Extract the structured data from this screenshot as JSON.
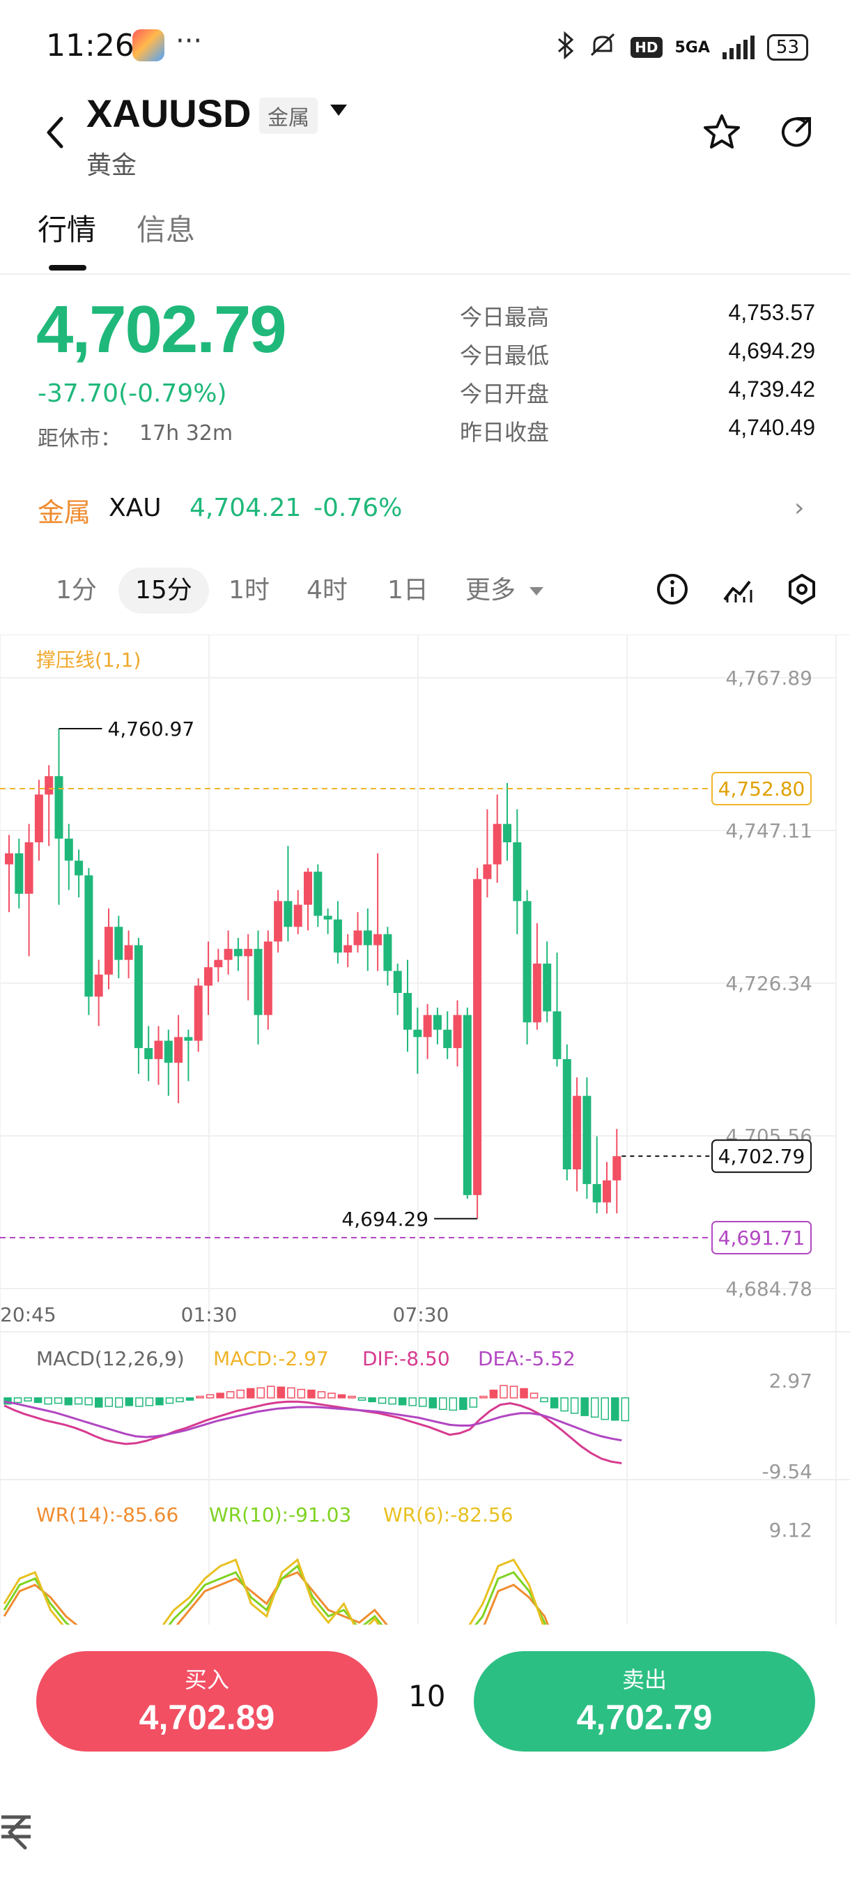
{
  "status_bar": {
    "time": "11:26",
    "more": "···",
    "network": "5GA",
    "battery": "53"
  },
  "header": {
    "symbol": "XAUUSD",
    "category_tag": "金属",
    "name": "黄金"
  },
  "tabs": [
    {
      "label": "行情",
      "active": true
    },
    {
      "label": "信息",
      "active": false
    }
  ],
  "quote": {
    "price": "4,702.79",
    "change": "-37.70(-0.79%)",
    "close_label": "距休市：",
    "close_value": "17h 32m",
    "stats": [
      {
        "label": "今日最高",
        "value": "4,753.57"
      },
      {
        "label": "今日最低",
        "value": "4,694.29"
      },
      {
        "label": "今日开盘",
        "value": "4,739.42"
      },
      {
        "label": "昨日收盘",
        "value": "4,740.49"
      }
    ]
  },
  "related": {
    "label": "金属",
    "symbol": "XAU",
    "price": "4,704.21",
    "change": "-0.76%"
  },
  "intervals": {
    "items": [
      "1分",
      "15分",
      "1时",
      "4时",
      "1日",
      "更多"
    ],
    "active": "15分"
  },
  "chart_data": [
    {
      "type": "candlestick",
      "title": "",
      "indicator_label": "撑压线(1,1)",
      "y_tick_labels": [
        "4,767.89",
        "4,747.11",
        "4,726.34",
        "4,705.56",
        "4,684.78"
      ],
      "x_tick_labels": [
        "20:45",
        "01:30",
        "07:30"
      ],
      "ylim": [
        4684.78,
        4767.89
      ],
      "annotations": {
        "high_marker": "4,760.97",
        "low_marker": "4,694.29",
        "resistance_line": "4,752.80",
        "support_line": "4,691.71",
        "last_price": "4,702.79"
      },
      "colors": {
        "up": "#f24f63",
        "down": "#1fb87a",
        "resistance": "#f0b429",
        "support": "#b146c2"
      },
      "candles": [
        {
          "o": 4742.5,
          "h": 4746.5,
          "l": 4736.0,
          "c": 4744.0
        },
        {
          "o": 4744.0,
          "h": 4746.0,
          "l": 4736.5,
          "c": 4738.5
        },
        {
          "o": 4738.5,
          "h": 4748.0,
          "l": 4730.0,
          "c": 4745.5
        },
        {
          "o": 4745.5,
          "h": 4754.0,
          "l": 4743.0,
          "c": 4752.0
        },
        {
          "o": 4752.0,
          "h": 4756.0,
          "l": 4745.0,
          "c": 4754.5
        },
        {
          "o": 4754.5,
          "h": 4760.97,
          "l": 4737.0,
          "c": 4746.0
        },
        {
          "o": 4746.0,
          "h": 4748.0,
          "l": 4739.0,
          "c": 4743.0
        },
        {
          "o": 4743.0,
          "h": 4744.5,
          "l": 4738.0,
          "c": 4741.0
        },
        {
          "o": 4741.0,
          "h": 4742.0,
          "l": 4722.0,
          "c": 4724.5
        },
        {
          "o": 4724.5,
          "h": 4729.5,
          "l": 4720.5,
          "c": 4727.5
        },
        {
          "o": 4727.5,
          "h": 4736.5,
          "l": 4725.5,
          "c": 4734.0
        },
        {
          "o": 4734.0,
          "h": 4735.5,
          "l": 4727.0,
          "c": 4729.5
        },
        {
          "o": 4729.5,
          "h": 4733.5,
          "l": 4727.0,
          "c": 4731.5
        },
        {
          "o": 4731.5,
          "h": 4732.5,
          "l": 4714.0,
          "c": 4717.5
        },
        {
          "o": 4717.5,
          "h": 4720.5,
          "l": 4713.0,
          "c": 4716.0
        },
        {
          "o": 4716.0,
          "h": 4720.5,
          "l": 4712.5,
          "c": 4718.5
        },
        {
          "o": 4718.5,
          "h": 4720.0,
          "l": 4711.0,
          "c": 4715.5
        },
        {
          "o": 4715.5,
          "h": 4722.0,
          "l": 4710.0,
          "c": 4719.0
        },
        {
          "o": 4719.0,
          "h": 4720.0,
          "l": 4713.0,
          "c": 4718.5
        },
        {
          "o": 4718.5,
          "h": 4727.0,
          "l": 4717.0,
          "c": 4726.0
        },
        {
          "o": 4726.0,
          "h": 4732.0,
          "l": 4722.0,
          "c": 4728.5
        },
        {
          "o": 4728.5,
          "h": 4731.0,
          "l": 4726.5,
          "c": 4729.5
        },
        {
          "o": 4729.5,
          "h": 4733.5,
          "l": 4727.5,
          "c": 4731.0
        },
        {
          "o": 4731.0,
          "h": 4732.5,
          "l": 4728.0,
          "c": 4730.0
        },
        {
          "o": 4730.0,
          "h": 4733.0,
          "l": 4724.0,
          "c": 4731.0
        },
        {
          "o": 4731.0,
          "h": 4733.5,
          "l": 4718.0,
          "c": 4722.0
        },
        {
          "o": 4722.0,
          "h": 4733.5,
          "l": 4720.0,
          "c": 4732.0
        },
        {
          "o": 4732.0,
          "h": 4739.0,
          "l": 4730.5,
          "c": 4737.5
        },
        {
          "o": 4737.5,
          "h": 4745.0,
          "l": 4732.0,
          "c": 4734.0
        },
        {
          "o": 4734.0,
          "h": 4739.0,
          "l": 4733.0,
          "c": 4737.0
        },
        {
          "o": 4737.0,
          "h": 4742.0,
          "l": 4733.5,
          "c": 4741.5
        },
        {
          "o": 4741.5,
          "h": 4742.5,
          "l": 4734.0,
          "c": 4735.5
        },
        {
          "o": 4735.5,
          "h": 4736.5,
          "l": 4733.0,
          "c": 4735.0
        },
        {
          "o": 4735.0,
          "h": 4737.5,
          "l": 4729.0,
          "c": 4730.5
        },
        {
          "o": 4730.5,
          "h": 4733.0,
          "l": 4728.5,
          "c": 4731.5
        },
        {
          "o": 4731.5,
          "h": 4736.0,
          "l": 4730.5,
          "c": 4733.5
        },
        {
          "o": 4733.5,
          "h": 4736.5,
          "l": 4728.0,
          "c": 4731.5
        },
        {
          "o": 4731.5,
          "h": 4744.0,
          "l": 4728.0,
          "c": 4733.0
        },
        {
          "o": 4733.0,
          "h": 4734.0,
          "l": 4726.0,
          "c": 4728.0
        },
        {
          "o": 4728.0,
          "h": 4729.0,
          "l": 4722.0,
          "c": 4725.0
        },
        {
          "o": 4725.0,
          "h": 4729.5,
          "l": 4717.0,
          "c": 4720.0
        },
        {
          "o": 4720.0,
          "h": 4723.0,
          "l": 4714.0,
          "c": 4719.0
        },
        {
          "o": 4719.0,
          "h": 4723.5,
          "l": 4716.0,
          "c": 4722.0
        },
        {
          "o": 4722.0,
          "h": 4723.0,
          "l": 4718.0,
          "c": 4720.0
        },
        {
          "o": 4720.0,
          "h": 4722.5,
          "l": 4716.0,
          "c": 4717.5
        },
        {
          "o": 4717.5,
          "h": 4724.0,
          "l": 4715.0,
          "c": 4722.0
        },
        {
          "o": 4722.0,
          "h": 4723.0,
          "l": 4697.0,
          "c": 4697.5
        },
        {
          "o": 4697.5,
          "h": 4742.0,
          "l": 4694.29,
          "c": 4740.5
        },
        {
          "o": 4740.5,
          "h": 4750.0,
          "l": 4738.0,
          "c": 4742.5
        },
        {
          "o": 4742.5,
          "h": 4752.0,
          "l": 4740.0,
          "c": 4748.0
        },
        {
          "o": 4748.0,
          "h": 4753.57,
          "l": 4743.0,
          "c": 4745.5
        },
        {
          "o": 4745.5,
          "h": 4750.0,
          "l": 4733.0,
          "c": 4737.5
        },
        {
          "o": 4737.5,
          "h": 4739.0,
          "l": 4718.0,
          "c": 4721.0
        },
        {
          "o": 4721.0,
          "h": 4734.5,
          "l": 4720.0,
          "c": 4729.0
        },
        {
          "o": 4729.0,
          "h": 4732.0,
          "l": 4721.0,
          "c": 4722.5
        },
        {
          "o": 4722.5,
          "h": 4730.5,
          "l": 4715.0,
          "c": 4716.0
        },
        {
          "o": 4716.0,
          "h": 4718.0,
          "l": 4699.5,
          "c": 4701.0
        },
        {
          "o": 4701.0,
          "h": 4713.5,
          "l": 4698.0,
          "c": 4711.0
        },
        {
          "o": 4711.0,
          "h": 4713.5,
          "l": 4697.0,
          "c": 4699.0
        },
        {
          "o": 4699.0,
          "h": 4705.5,
          "l": 4695.0,
          "c": 4696.5
        },
        {
          "o": 4696.5,
          "h": 4702.0,
          "l": 4695.0,
          "c": 4699.5
        },
        {
          "o": 4699.5,
          "h": 4706.5,
          "l": 4695.0,
          "c": 4702.79
        }
      ]
    },
    {
      "type": "bar",
      "title": "MACD(12,26,9)",
      "legend": [
        {
          "name": "MACD",
          "value": "MACD:-2.97",
          "color": "#f0b429"
        },
        {
          "name": "DIF",
          "value": "DIF:-8.50",
          "color": "#d63a8f"
        },
        {
          "name": "DEA",
          "value": "DEA:-5.52",
          "color": "#b146c2"
        }
      ],
      "y_tick_labels": [
        "2.97",
        "-9.54"
      ],
      "ylim": [
        -9.54,
        2.97
      ],
      "histogram": [
        -0.8,
        -0.6,
        -0.4,
        -0.6,
        -0.8,
        -0.7,
        -0.9,
        -0.8,
        -0.9,
        -1.2,
        -1.1,
        -1.2,
        -1.0,
        -1.1,
        -1.0,
        -0.9,
        -0.7,
        -0.5,
        -0.3,
        0.2,
        0.4,
        0.6,
        0.8,
        1.0,
        1.2,
        1.3,
        1.5,
        1.4,
        1.3,
        1.1,
        1.0,
        0.8,
        0.6,
        0.4,
        0.2,
        -0.3,
        -0.5,
        -0.7,
        -0.8,
        -0.9,
        -1.0,
        -1.1,
        -1.3,
        -1.5,
        -1.6,
        -1.5,
        -1.2,
        0.2,
        1.0,
        1.6,
        1.5,
        1.2,
        0.6,
        -0.5,
        -1.3,
        -1.7,
        -2.0,
        -2.3,
        -2.5,
        -2.8,
        -2.9,
        -2.97
      ],
      "dif": [
        -1.0,
        -1.6,
        -2.1,
        -2.5,
        -2.9,
        -3.2,
        -3.5,
        -3.9,
        -4.4,
        -5.0,
        -5.5,
        -5.8,
        -6.0,
        -5.9,
        -5.6,
        -5.2,
        -4.8,
        -4.3,
        -3.9,
        -3.4,
        -2.9,
        -2.5,
        -2.1,
        -1.7,
        -1.4,
        -1.1,
        -0.8,
        -0.6,
        -0.5,
        -0.5,
        -0.6,
        -0.8,
        -1.0,
        -1.2,
        -1.4,
        -1.6,
        -1.8,
        -2.0,
        -2.3,
        -2.6,
        -3.0,
        -3.4,
        -3.8,
        -4.3,
        -4.8,
        -4.6,
        -4.1,
        -2.8,
        -1.7,
        -0.9,
        -0.7,
        -1.0,
        -1.5,
        -2.2,
        -3.1,
        -4.1,
        -5.2,
        -6.3,
        -7.2,
        -7.9,
        -8.3,
        -8.5
      ],
      "dea": [
        -0.5,
        -0.7,
        -1.0,
        -1.3,
        -1.6,
        -1.9,
        -2.3,
        -2.7,
        -3.1,
        -3.5,
        -3.9,
        -4.3,
        -4.7,
        -5.0,
        -5.1,
        -5.0,
        -4.8,
        -4.5,
        -4.2,
        -3.8,
        -3.4,
        -3.0,
        -2.7,
        -2.4,
        -2.1,
        -1.8,
        -1.6,
        -1.4,
        -1.3,
        -1.2,
        -1.2,
        -1.2,
        -1.3,
        -1.4,
        -1.5,
        -1.6,
        -1.7,
        -1.8,
        -2.0,
        -2.2,
        -2.4,
        -2.6,
        -2.9,
        -3.2,
        -3.5,
        -3.6,
        -3.6,
        -3.3,
        -2.9,
        -2.5,
        -2.2,
        -2.0,
        -2.0,
        -2.2,
        -2.6,
        -3.1,
        -3.6,
        -4.1,
        -4.6,
        -5.0,
        -5.3,
        -5.52
      ]
    },
    {
      "type": "line",
      "title": "",
      "legend": [
        {
          "name": "WR(14)",
          "value": "WR(14):-85.66",
          "color": "#f08c2f"
        },
        {
          "name": "WR(10)",
          "value": "WR(10):-91.03",
          "color": "#7ed321"
        },
        {
          "name": "WR(6)",
          "value": "WR(6):-82.56",
          "color": "#e8c020"
        }
      ],
      "y_tick_labels": [
        "9.12"
      ],
      "series": [
        {
          "name": "WR(14)",
          "values": [
            -60,
            -40,
            -35,
            -45,
            -60,
            -70,
            -80,
            -85,
            -90,
            -88,
            -80,
            -70,
            -55,
            -40,
            -35,
            -30,
            -40,
            -50,
            -30,
            -25,
            -40,
            -55,
            -60,
            -65,
            -55,
            -70,
            -85,
            -90,
            -95,
            -95,
            -80,
            -70,
            -40,
            -35,
            -45,
            -60,
            -90,
            -95,
            -90,
            -92,
            -85.66
          ]
        },
        {
          "name": "WR(10)",
          "values": [
            -55,
            -35,
            -30,
            -50,
            -65,
            -75,
            -85,
            -90,
            -95,
            -90,
            -78,
            -62,
            -50,
            -35,
            -30,
            -25,
            -45,
            -55,
            -30,
            -20,
            -45,
            -60,
            -55,
            -70,
            -60,
            -75,
            -88,
            -92,
            -98,
            -96,
            -75,
            -60,
            -30,
            -25,
            -40,
            -65,
            -92,
            -98,
            -95,
            -95,
            -91.03
          ]
        },
        {
          "name": "WR(6)",
          "values": [
            -50,
            -30,
            -25,
            -55,
            -70,
            -80,
            -90,
            -92,
            -98,
            -85,
            -72,
            -55,
            -45,
            -30,
            -20,
            -15,
            -50,
            -60,
            -25,
            -15,
            -50,
            -65,
            -50,
            -75,
            -62,
            -80,
            -90,
            -95,
            -99,
            -90,
            -70,
            -50,
            -20,
            -15,
            -35,
            -70,
            -95,
            -99,
            -96,
            -93,
            -82.56
          ]
        }
      ]
    }
  ],
  "trade": {
    "buy_label": "买入",
    "buy_price": "4,702.89",
    "quantity": "10",
    "sell_label": "卖出",
    "sell_price": "4,702.79"
  }
}
